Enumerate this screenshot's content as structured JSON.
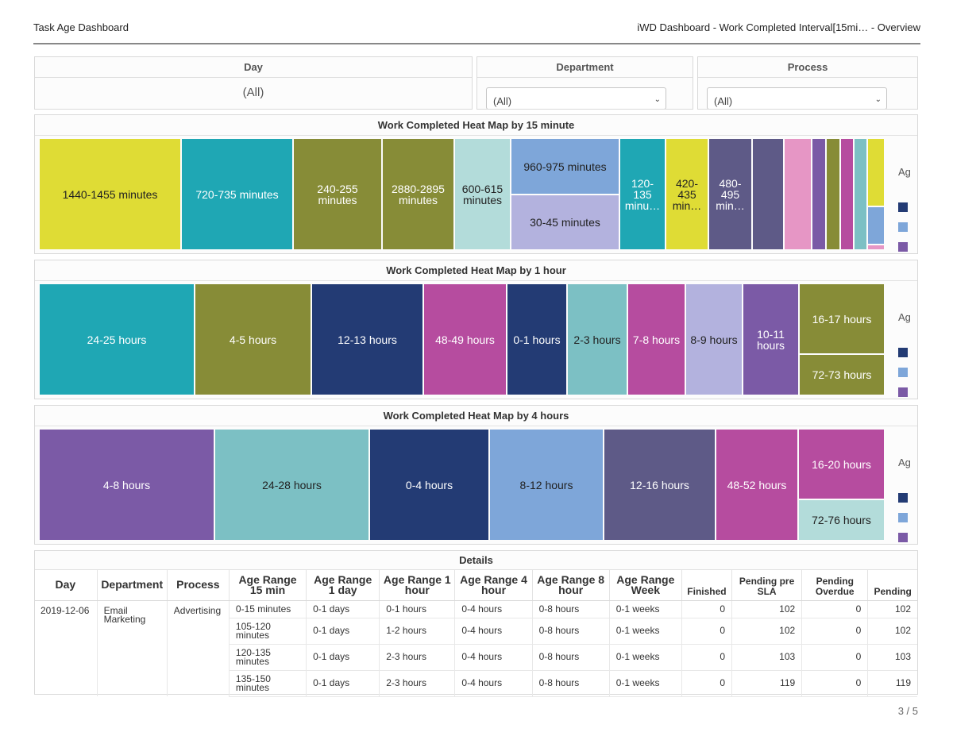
{
  "header": {
    "title": "Task Age Dashboard",
    "breadcrumb": "iWD Dashboard  -  Work Completed Interval[15mi…  -  Overview"
  },
  "filters": {
    "day": {
      "label": "Day",
      "value": "(All)"
    },
    "department": {
      "label": "Department",
      "value": "(All)"
    },
    "process": {
      "label": "Process",
      "value": "(All)"
    }
  },
  "heatmaps": {
    "m15": {
      "title": "Work Completed Heat Map by 15 minute",
      "legend_title": "Ag",
      "tiles": [
        {
          "label": "1440-1455 minutes",
          "color": "#dfdc35"
        },
        {
          "label": "720-735 minutes",
          "color": "#1fa7b4"
        },
        {
          "label": "240-255 minutes",
          "color": "#878c37"
        },
        {
          "label": "2880-2895 minutes",
          "color": "#878c37"
        },
        {
          "label": "600-615 minutes",
          "color": "#b3dcda"
        },
        {
          "label": "960-975 minutes",
          "color": "#7ea6d9"
        },
        {
          "label": "30-45 minutes",
          "color": "#b3b2de"
        },
        {
          "label": "120-135 minu…",
          "color": "#1fa7b4"
        },
        {
          "label": "420-435 min…",
          "color": "#dfdc35"
        },
        {
          "label": "480-495 min…",
          "color": "#5e5a87"
        },
        {
          "label": "",
          "color": "#5e5a87"
        },
        {
          "label": "",
          "color": "#e696c5"
        },
        {
          "label": "",
          "color": "#7b5aa6"
        },
        {
          "label": "",
          "color": "#878c37"
        },
        {
          "label": "",
          "color": "#b64c9f"
        },
        {
          "label": "",
          "color": "#7cc0c4"
        },
        {
          "label": "",
          "color": "#dfdc35"
        },
        {
          "label": "",
          "color": "#7ea6d9"
        },
        {
          "label": "",
          "color": "#e696c5"
        }
      ]
    },
    "h1": {
      "title": "Work Completed Heat Map by 1 hour",
      "legend_title": "Ag",
      "tiles": [
        {
          "label": "24-25 hours",
          "color": "#1fa7b4"
        },
        {
          "label": "4-5 hours",
          "color": "#878c37"
        },
        {
          "label": "12-13 hours",
          "color": "#233b74"
        },
        {
          "label": "48-49 hours",
          "color": "#b64c9f"
        },
        {
          "label": "0-1 hours",
          "color": "#233b74"
        },
        {
          "label": "2-3 hours",
          "color": "#7cc0c4"
        },
        {
          "label": "7-8 hours",
          "color": "#b64c9f"
        },
        {
          "label": "8-9 hours",
          "color": "#b3b2de"
        },
        {
          "label": "10-11 hours",
          "color": "#7b5aa6"
        },
        {
          "label": "16-17 hours",
          "color": "#878c37"
        },
        {
          "label": "72-73 hours",
          "color": "#878c37"
        }
      ]
    },
    "h4": {
      "title": "Work Completed Heat Map by 4 hours",
      "legend_title": "Ag",
      "tiles": [
        {
          "label": "4-8 hours",
          "color": "#7b5aa6"
        },
        {
          "label": "24-28 hours",
          "color": "#7cc0c4"
        },
        {
          "label": "0-4 hours",
          "color": "#233b74"
        },
        {
          "label": "8-12 hours",
          "color": "#7ea6d9"
        },
        {
          "label": "12-16 hours",
          "color": "#5e5a87"
        },
        {
          "label": "48-52 hours",
          "color": "#b64c9f"
        },
        {
          "label": "16-20 hours",
          "color": "#b64c9f"
        },
        {
          "label": "72-76 hours",
          "color": "#b3dcda"
        }
      ]
    },
    "legend_colors": [
      "#233b74",
      "#7ea6d9",
      "#7b5aa6"
    ]
  },
  "details": {
    "title": "Details",
    "columns": [
      "Day",
      "Department",
      "Process",
      "Age Range 15 min",
      "Age Range 1 day",
      "Age Range 1 hour",
      "Age Range 4 hour",
      "Age Range 8 hour",
      "Age Range Week",
      "Finished",
      "Pending pre SLA",
      "Pending Overdue",
      "Pending"
    ],
    "group": {
      "day": "2019-12-06",
      "department": "Email Marketing",
      "process": "Advertising"
    },
    "rows": [
      {
        "range15": "0-15 minutes",
        "day1": "0-1 days",
        "hour1": "0-1 hours",
        "hour4": "0-4 hours",
        "hour8": "0-8 hours",
        "week": "0-1 weeks",
        "finished": "0",
        "pending_pre_sla": "102",
        "pending_overdue": "0",
        "pending": "102"
      },
      {
        "range15": "105-120 minutes",
        "day1": "0-1 days",
        "hour1": "1-2 hours",
        "hour4": "0-4 hours",
        "hour8": "0-8 hours",
        "week": "0-1 weeks",
        "finished": "0",
        "pending_pre_sla": "102",
        "pending_overdue": "0",
        "pending": "102"
      },
      {
        "range15": "120-135 minutes",
        "day1": "0-1 days",
        "hour1": "2-3 hours",
        "hour4": "0-4 hours",
        "hour8": "0-8 hours",
        "week": "0-1 weeks",
        "finished": "0",
        "pending_pre_sla": "103",
        "pending_overdue": "0",
        "pending": "103"
      },
      {
        "range15": "135-150 minutes",
        "day1": "0-1 days",
        "hour1": "2-3 hours",
        "hour4": "0-4 hours",
        "hour8": "0-8 hours",
        "week": "0-1 weeks",
        "finished": "0",
        "pending_pre_sla": "119",
        "pending_overdue": "0",
        "pending": "119"
      }
    ]
  },
  "pagination": {
    "label": "3 / 5"
  }
}
